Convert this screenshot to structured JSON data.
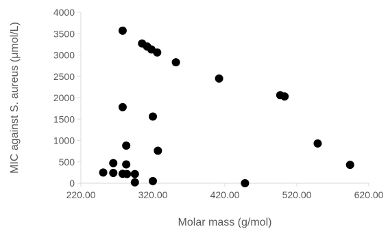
{
  "chart_data": {
    "type": "scatter",
    "xlabel": "Molar mass (g/mol)",
    "ylabel": "MIC against S. aureus (μmol/L)",
    "xlim": [
      220,
      620
    ],
    "ylim": [
      0,
      4000
    ],
    "x_ticks": [
      220,
      320,
      420,
      520,
      620
    ],
    "x_tick_labels": [
      "220.00",
      "320.00",
      "420.00",
      "520.00",
      "620.00"
    ],
    "y_ticks": [
      0,
      500,
      1000,
      1500,
      2000,
      2500,
      3000,
      3500,
      4000
    ],
    "y_tick_labels": [
      "0",
      "500",
      "1000",
      "1500",
      "2000",
      "2500",
      "3000",
      "3500",
      "4000"
    ],
    "grid": false,
    "legend": "none",
    "marker_color": "#000000",
    "points": [
      {
        "x": 251,
        "y": 250
      },
      {
        "x": 265,
        "y": 470
      },
      {
        "x": 265,
        "y": 240
      },
      {
        "x": 278,
        "y": 3570
      },
      {
        "x": 278,
        "y": 1780
      },
      {
        "x": 278,
        "y": 220
      },
      {
        "x": 283,
        "y": 880
      },
      {
        "x": 283,
        "y": 440
      },
      {
        "x": 284,
        "y": 215
      },
      {
        "x": 295,
        "y": 215
      },
      {
        "x": 295,
        "y": 20
      },
      {
        "x": 305,
        "y": 3270
      },
      {
        "x": 312,
        "y": 3200
      },
      {
        "x": 318,
        "y": 3130
      },
      {
        "x": 326,
        "y": 3060
      },
      {
        "x": 320,
        "y": 1560
      },
      {
        "x": 320,
        "y": 50
      },
      {
        "x": 327,
        "y": 760
      },
      {
        "x": 352,
        "y": 2830
      },
      {
        "x": 412,
        "y": 2450
      },
      {
        "x": 448,
        "y": 0
      },
      {
        "x": 497,
        "y": 2060
      },
      {
        "x": 503,
        "y": 2030
      },
      {
        "x": 549,
        "y": 930
      },
      {
        "x": 594,
        "y": 430
      }
    ]
  }
}
